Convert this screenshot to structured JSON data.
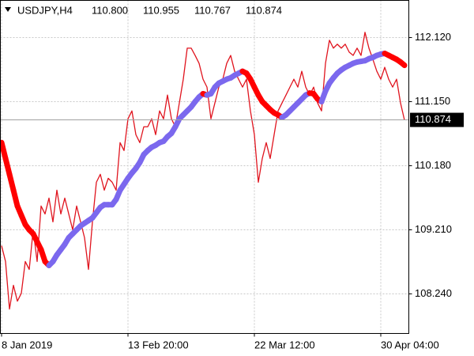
{
  "chart_data": {
    "type": "line",
    "title": "USDJPY,H4",
    "ohlc": [
      "110.800",
      "110.955",
      "110.767",
      "110.874"
    ],
    "categories": [
      "8 Jan 2019",
      null,
      null,
      null,
      null,
      null,
      null,
      null,
      null,
      null,
      null,
      null,
      null,
      null,
      null,
      null,
      null,
      null,
      null,
      null,
      null,
      null,
      null,
      null,
      null,
      null,
      null,
      null,
      null,
      null,
      null,
      null,
      "13 Feb 20:00",
      null,
      null,
      null,
      null,
      null,
      null,
      null,
      null,
      null,
      null,
      null,
      null,
      null,
      null,
      null,
      null,
      null,
      null,
      null,
      null,
      null,
      null,
      null,
      null,
      null,
      null,
      null,
      null,
      null,
      null,
      null,
      "22 Mar 12:00",
      null,
      null,
      null,
      null,
      null,
      null,
      null,
      null,
      null,
      null,
      null,
      null,
      null,
      null,
      null,
      null,
      null,
      null,
      null,
      null,
      null,
      null,
      null,
      null,
      null,
      null,
      null,
      null,
      null,
      null,
      null,
      "30 Apr 04:00",
      null,
      null,
      null,
      null,
      null,
      null
    ],
    "series": [
      {
        "color": "#e0141e",
        "values": [
          108.97,
          108.73,
          108.01,
          108.37,
          108.13,
          108.25,
          108.73,
          108.61,
          109.21,
          108.73,
          109.57,
          109.45,
          109.69,
          109.33,
          109.81,
          109.45,
          109.69,
          109.45,
          109.21,
          109.57,
          109.33,
          109.09,
          108.61,
          109.33,
          109.93,
          110.05,
          109.81,
          109.99,
          109.93,
          109.81,
          110.53,
          110.41,
          110.89,
          111.01,
          110.65,
          110.53,
          110.77,
          110.77,
          110.89,
          110.65,
          111.01,
          110.89,
          111.25,
          110.89,
          110.77,
          111.13,
          111.49,
          111.96,
          111.96,
          111.85,
          111.73,
          111.49,
          111.37,
          110.89,
          111.13,
          111.37,
          111.49,
          111.73,
          111.85,
          111.61,
          111.49,
          111.37,
          111.49,
          111.01,
          110.65,
          109.93,
          110.29,
          110.53,
          110.29,
          110.65,
          111.01,
          111.13,
          111.25,
          111.37,
          111.49,
          111.37,
          111.61,
          111.37,
          111.25,
          111.37,
          111.13,
          111.01,
          111.73,
          112.08,
          111.96,
          112.02,
          111.96,
          112.02,
          111.9,
          111.85,
          111.96,
          111.85,
          112.2,
          111.96,
          111.79,
          111.61,
          111.49,
          111.67,
          111.49,
          111.37,
          111.49,
          111.13,
          110.87
        ]
      },
      {
        "up_color": "#7b68ee",
        "down_color": "#ff0000",
        "values": [
          110.53,
          110.29,
          110.05,
          109.81,
          109.57,
          109.43,
          109.29,
          109.21,
          109.15,
          109.03,
          108.91,
          108.73,
          108.67,
          108.73,
          108.83,
          108.91,
          108.99,
          109.09,
          109.15,
          109.21,
          109.27,
          109.31,
          109.35,
          109.39,
          109.47,
          109.55,
          109.59,
          109.59,
          109.59,
          109.67,
          109.81,
          109.9,
          109.99,
          110.07,
          110.14,
          110.23,
          110.35,
          110.41,
          110.46,
          110.49,
          110.53,
          110.55,
          110.62,
          110.67,
          110.77,
          110.89,
          110.95,
          111.01,
          111.07,
          111.15,
          111.22,
          111.27,
          111.25,
          111.27,
          111.37,
          111.43,
          111.46,
          111.49,
          111.51,
          111.55,
          111.58,
          111.61,
          111.58,
          111.49,
          111.37,
          111.25,
          111.15,
          111.09,
          111.03,
          110.98,
          110.95,
          110.91,
          110.95,
          111.01,
          111.07,
          111.13,
          111.19,
          111.25,
          111.28,
          111.27,
          111.19,
          111.15,
          111.31,
          111.43,
          111.51,
          111.58,
          111.63,
          111.67,
          111.7,
          111.73,
          111.75,
          111.76,
          111.77,
          111.8,
          111.82,
          111.85,
          111.87,
          111.88,
          111.85,
          111.82,
          111.79,
          111.75,
          111.7
        ]
      }
    ],
    "ylim": [
      107.641,
      112.683
    ],
    "yticks": [
      {
        "value": 112.12,
        "label": "112.120"
      },
      {
        "value": 111.15,
        "label": "111.150"
      },
      {
        "value": 110.18,
        "label": "110.180"
      },
      {
        "value": 109.21,
        "label": "109.210"
      },
      {
        "value": 108.24,
        "label": "108.240"
      }
    ],
    "last_price": {
      "value": 110.874,
      "label": "110.874"
    },
    "grid": true
  }
}
